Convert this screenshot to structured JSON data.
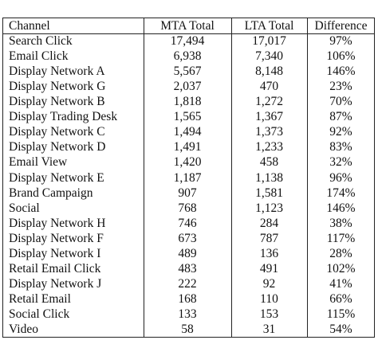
{
  "table": {
    "header": [
      "Channel",
      "MTA Total",
      "LTA Total",
      "Difference"
    ],
    "rows": [
      [
        "Search Click",
        "17,494",
        "17,017",
        "97%"
      ],
      [
        "Email Click",
        "6,938",
        "7,340",
        "106%"
      ],
      [
        "Display Network A",
        "5,567",
        "8,148",
        "146%"
      ],
      [
        "Display Network G",
        "2,037",
        "470",
        "23%"
      ],
      [
        "Display Network B",
        "1,818",
        "1,272",
        "70%"
      ],
      [
        "Display Trading Desk",
        "1,565",
        "1,367",
        "87%"
      ],
      [
        "Display Network C",
        "1,494",
        "1,373",
        "92%"
      ],
      [
        "Display Network D",
        "1,491",
        "1,233",
        "83%"
      ],
      [
        "Email View",
        "1,420",
        "458",
        "32%"
      ],
      [
        "Display Network E",
        "1,187",
        "1,138",
        "96%"
      ],
      [
        "Brand Campaign",
        "907",
        "1,581",
        "174%"
      ],
      [
        "Social",
        "768",
        "1,123",
        "146%"
      ],
      [
        "Display Network H",
        "746",
        "284",
        "38%"
      ],
      [
        "Display Network F",
        "673",
        "787",
        "117%"
      ],
      [
        "Display Network I",
        "489",
        "136",
        "28%"
      ],
      [
        "Retail Email Click",
        "483",
        "491",
        "102%"
      ],
      [
        "Display Network J",
        "222",
        "92",
        "41%"
      ],
      [
        "Retail Email",
        "168",
        "110",
        "66%"
      ],
      [
        "Social Click",
        "133",
        "153",
        "115%"
      ],
      [
        "Video",
        "58",
        "31",
        "54%"
      ]
    ]
  }
}
